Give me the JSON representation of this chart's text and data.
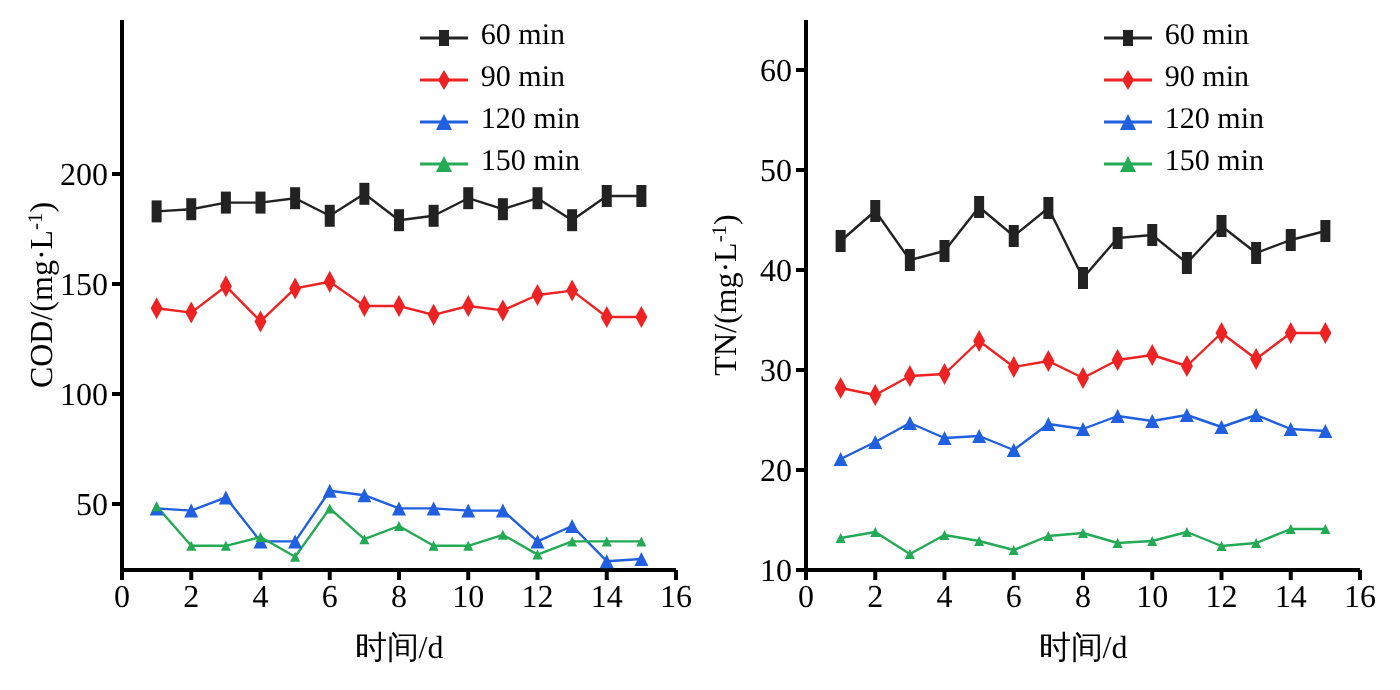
{
  "chart_data": [
    {
      "type": "line",
      "xlabel": "时间/d",
      "ylabel": "COD/(mg·L$^{-1}$)",
      "x": [
        1,
        2,
        3,
        4,
        5,
        6,
        7,
        8,
        9,
        10,
        11,
        12,
        13,
        14,
        15
      ],
      "xlim": [
        0,
        16
      ],
      "xticks": [
        0,
        2,
        4,
        6,
        8,
        10,
        12,
        14,
        16
      ],
      "ylim": [
        20,
        270
      ],
      "yticks": [
        50,
        100,
        150,
        200
      ],
      "grid": false,
      "legend": "top right",
      "series": [
        {
          "name": "60 min",
          "color": "#222222",
          "marker": "square",
          "values": [
            183,
            184,
            187,
            187,
            189,
            181,
            191,
            179,
            181,
            189,
            184,
            189,
            179,
            190,
            190
          ]
        },
        {
          "name": "90 min",
          "color": "#ee2222",
          "marker": "diamond",
          "values": [
            139,
            137,
            149,
            133,
            148,
            151,
            140,
            140,
            136,
            140,
            138,
            145,
            147,
            135,
            135
          ]
        },
        {
          "name": "120 min",
          "color": "#1f5fe0",
          "marker": "triangle",
          "values": [
            48,
            47,
            53,
            33,
            33,
            56,
            54,
            48,
            48,
            47,
            47,
            33,
            40,
            24,
            25
          ]
        },
        {
          "name": "150 min",
          "color": "#22aa55",
          "marker": "triangle",
          "values": [
            49,
            31,
            31,
            35,
            26,
            48,
            34,
            40,
            31,
            31,
            36,
            27,
            33,
            33,
            33
          ]
        }
      ]
    },
    {
      "type": "line",
      "xlabel": "时间/d",
      "ylabel": "TN/(mg·L$^{-1}$)",
      "x": [
        1,
        2,
        3,
        4,
        5,
        6,
        7,
        8,
        9,
        10,
        11,
        12,
        13,
        14,
        15
      ],
      "xlim": [
        0,
        16
      ],
      "xticks": [
        0,
        2,
        4,
        6,
        8,
        10,
        12,
        14,
        16
      ],
      "ylim": [
        10,
        65
      ],
      "yticks": [
        10,
        20,
        30,
        40,
        50,
        60
      ],
      "grid": false,
      "legend": "top right",
      "series": [
        {
          "name": "60 min",
          "color": "#222222",
          "marker": "square",
          "values": [
            42.9,
            45.9,
            41,
            41.9,
            46.3,
            43.4,
            46.2,
            39.2,
            43.2,
            43.5,
            40.7,
            44.4,
            41.7,
            43,
            43.9
          ]
        },
        {
          "name": "90 min",
          "color": "#ee2222",
          "marker": "diamond",
          "values": [
            28.2,
            27.5,
            29.4,
            29.6,
            32.9,
            30.3,
            30.9,
            29.2,
            31,
            31.5,
            30.4,
            33.7,
            31.1,
            33.7,
            33.7
          ]
        },
        {
          "name": "120 min",
          "color": "#1f5fe0",
          "marker": "triangle",
          "values": [
            21.1,
            22.8,
            24.7,
            23.2,
            23.4,
            22,
            24.6,
            24.1,
            25.4,
            24.9,
            25.5,
            24.3,
            25.5,
            24.1,
            23.9
          ]
        },
        {
          "name": "150 min",
          "color": "#22aa55",
          "marker": "triangle",
          "values": [
            13.2,
            13.8,
            11.6,
            13.5,
            12.9,
            12,
            13.4,
            13.7,
            12.7,
            12.9,
            13.8,
            12.4,
            12.7,
            14.1,
            14.1
          ]
        }
      ]
    }
  ]
}
